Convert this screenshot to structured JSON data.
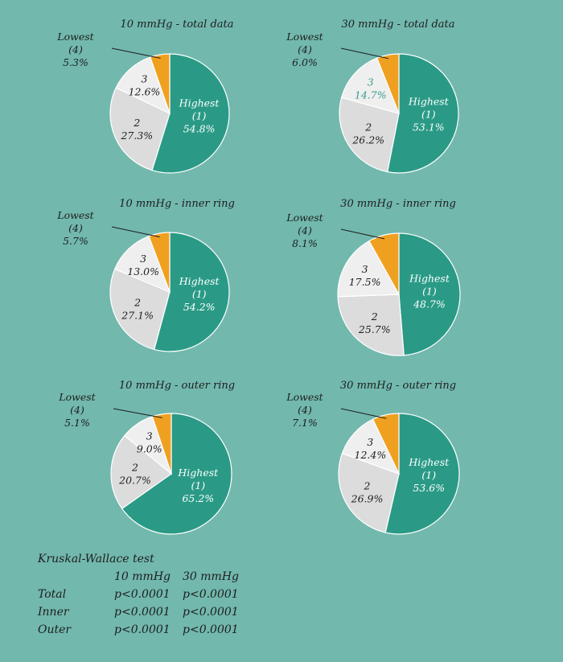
{
  "colors": {
    "background": "#72b8ad",
    "highest": "#2a9a86",
    "slice2": "#dcdcdc",
    "slice3": "#efefef",
    "lowest": "#f0a020",
    "dark_text": "#1e1e1e",
    "light_text": "#ffffff",
    "teal_text": "#3a9c8a"
  },
  "chart_data": [
    {
      "type": "pie",
      "title": "10 mmHg - total data",
      "slices": [
        {
          "name": "Highest",
          "rank": "(1)",
          "label": "54.8%",
          "value": 54.8
        },
        {
          "name": "2",
          "label": "27.3%",
          "value": 27.3
        },
        {
          "name": "3",
          "label": "12.6%",
          "value": 12.6
        },
        {
          "name": "Lowest",
          "rank": "(4)",
          "label": "5.3%",
          "value": 5.3
        }
      ]
    },
    {
      "type": "pie",
      "title": "30 mmHg - total data",
      "slices": [
        {
          "name": "Highest",
          "rank": "(1)",
          "label": "53.1%",
          "value": 53.1
        },
        {
          "name": "2",
          "label": "26.2%",
          "value": 26.2
        },
        {
          "name": "3",
          "label": "14.7%",
          "value": 14.7
        },
        {
          "name": "Lowest",
          "rank": "(4)",
          "label": "6.0%",
          "value": 6.0
        }
      ]
    },
    {
      "type": "pie",
      "title": "10 mmHg - inner ring",
      "slices": [
        {
          "name": "Highest",
          "rank": "(1)",
          "label": "54.2%",
          "value": 54.2
        },
        {
          "name": "2",
          "label": "27.1%",
          "value": 27.1
        },
        {
          "name": "3",
          "label": "13.0%",
          "value": 13.0
        },
        {
          "name": "Lowest",
          "rank": "(4)",
          "label": "5.7%",
          "value": 5.7
        }
      ]
    },
    {
      "type": "pie",
      "title": "30 mmHg - inner ring",
      "slices": [
        {
          "name": "Highest",
          "rank": "(1)",
          "label": "48.7%",
          "value": 48.7
        },
        {
          "name": "2",
          "label": "25.7%",
          "value": 25.7
        },
        {
          "name": "3",
          "label": "17.5%",
          "value": 17.5
        },
        {
          "name": "Lowest",
          "rank": "(4)",
          "label": "8.1%",
          "value": 8.1
        }
      ]
    },
    {
      "type": "pie",
      "title": "10 mmHg - outer ring",
      "slices": [
        {
          "name": "Highest",
          "rank": "(1)",
          "label": "65.2%",
          "value": 65.2
        },
        {
          "name": "2",
          "label": "20.7%",
          "value": 20.7
        },
        {
          "name": "3",
          "label": "9.0%",
          "value": 9.0
        },
        {
          "name": "Lowest",
          "rank": "(4)",
          "label": "5.1%",
          "value": 5.1
        }
      ]
    },
    {
      "type": "pie",
      "title": "30 mmHg - outer ring",
      "slices": [
        {
          "name": "Highest",
          "rank": "(1)",
          "label": "53.6%",
          "value": 53.6
        },
        {
          "name": "2",
          "label": "26.9%",
          "value": 26.9
        },
        {
          "name": "3",
          "label": "12.4%",
          "value": 12.4
        },
        {
          "name": "Lowest",
          "rank": "(4)",
          "label": "7.1%",
          "value": 7.1
        }
      ]
    }
  ],
  "stats": {
    "title": "Kruskal-Wallace test",
    "columns": [
      "10 mmHg",
      "30 mmHg"
    ],
    "rows": [
      {
        "label": "Total",
        "values": [
          "p<0.0001",
          "p<0.0001"
        ]
      },
      {
        "label": "Inner",
        "values": [
          "p<0.0001",
          "p<0.0001"
        ]
      },
      {
        "label": "Outer",
        "values": [
          "p<0.0001",
          "p<0.0001"
        ]
      }
    ]
  }
}
